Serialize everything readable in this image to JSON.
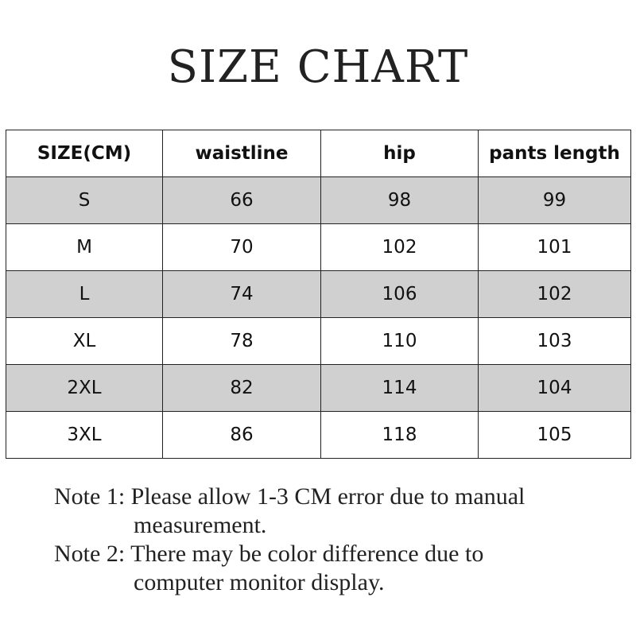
{
  "title": "SIZE CHART",
  "table": {
    "headers": [
      "SIZE(CM)",
      "waistline",
      "hip",
      "pants length"
    ],
    "rows": [
      [
        "S",
        "66",
        "98",
        "99"
      ],
      [
        "M",
        "70",
        "102",
        "101"
      ],
      [
        "L",
        "74",
        "106",
        "102"
      ],
      [
        "XL",
        "78",
        "110",
        "103"
      ],
      [
        "2XL",
        "82",
        "114",
        "104"
      ],
      [
        "3XL",
        "86",
        "118",
        "105"
      ]
    ],
    "row_shading_color": "#d0d0d0"
  },
  "notes": [
    {
      "line1": "Note 1: Please allow 1-3 CM error due to manual",
      "line2": "measurement."
    },
    {
      "line1": "Note 2: There may be color difference due to",
      "line2": "computer monitor display."
    }
  ]
}
